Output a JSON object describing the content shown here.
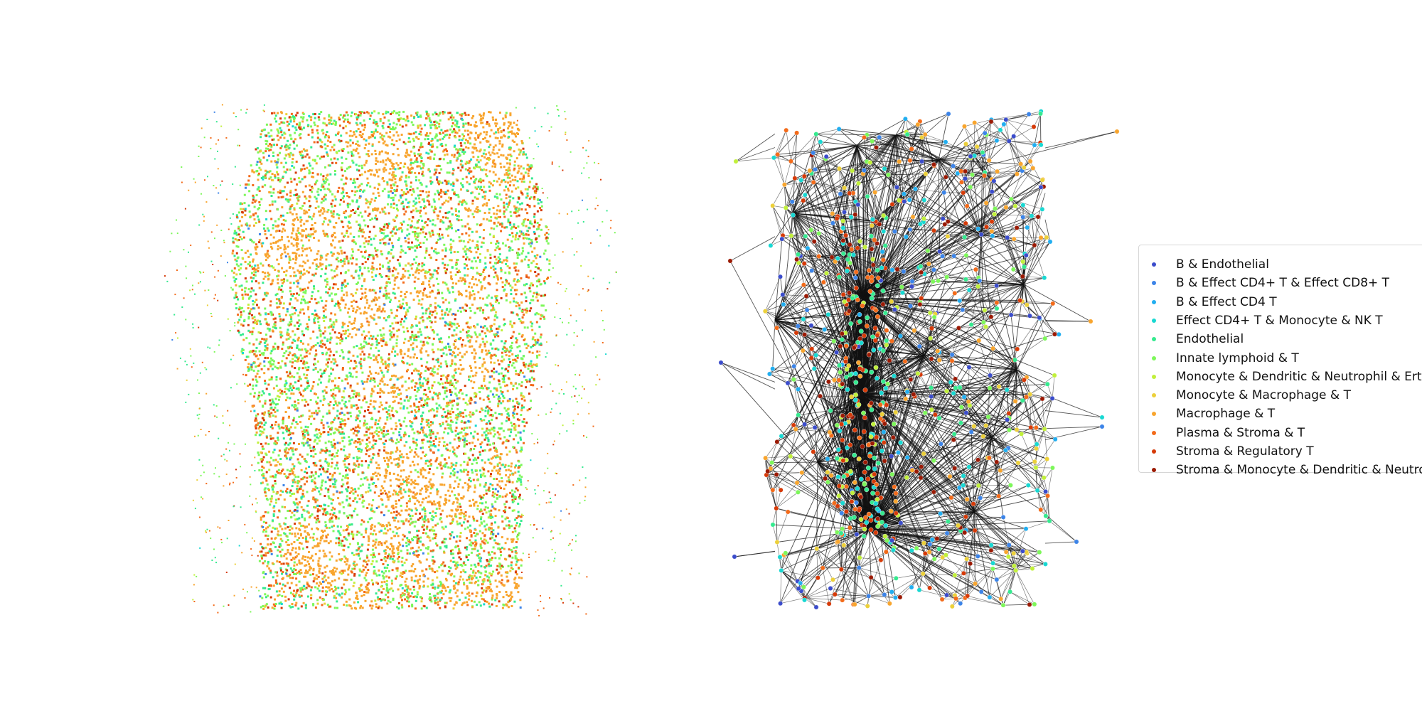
{
  "chart_data": [
    {
      "type": "scatter",
      "panel": "spatial-cells",
      "title": "",
      "xlabel": "",
      "ylabel": "",
      "axes_visible": false,
      "grid": false,
      "description_values": {
        "tissue_extent_x": [
          0.0,
          1.0
        ],
        "tissue_extent_y": [
          0.0,
          1.0
        ],
        "dominant_categories": [
          "Innate lymphoid & T",
          "Macrophage & T",
          "Plasma & Stroma & T",
          "Stroma & Regulatory T",
          "Endothelial"
        ]
      }
    },
    {
      "type": "scatter",
      "panel": "cell-graph",
      "title": "",
      "xlabel": "",
      "ylabel": "",
      "axes_visible": false,
      "grid": false,
      "edges_color": "#111111",
      "legend": {
        "placement": "right"
      }
    }
  ],
  "legend": {
    "entries": [
      {
        "label": "B & Endothelial",
        "color": "#3b4ccb"
      },
      {
        "label": "B & Effect CD4+ T & Effect CD8+ T",
        "color": "#3c84e8"
      },
      {
        "label": "B & Effect CD4 T",
        "color": "#22aef0"
      },
      {
        "label": "Effect CD4+ T & Monocyte & NK T",
        "color": "#18d8d2"
      },
      {
        "label": "Endothelial",
        "color": "#35ea8f"
      },
      {
        "label": "Innate lymphoid & T",
        "color": "#7df75a"
      },
      {
        "label": "Monocyte & Dendritic & Neutrophil & Erthrocyte",
        "color": "#c1f03a"
      },
      {
        "label": "Monocyte & Macrophage & T",
        "color": "#ecd03a"
      },
      {
        "label": "Macrophage & T",
        "color": "#f8a52e"
      },
      {
        "label": "Plasma & Stroma & T",
        "color": "#f36b1a"
      },
      {
        "label": "Stroma & Regulatory T",
        "color": "#d63a08"
      },
      {
        "label": "Stroma & Monocyte & Dendritic & Neutrophil",
        "color": "#9b1a04"
      }
    ]
  }
}
